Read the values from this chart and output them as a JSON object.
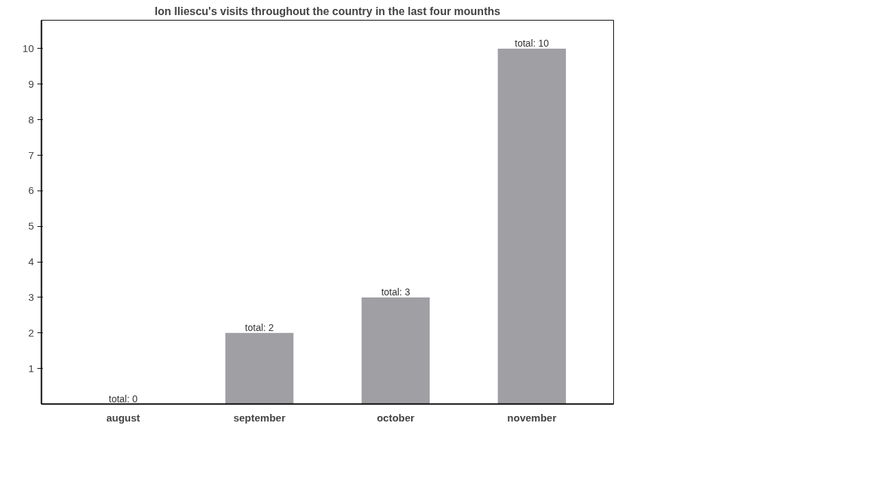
{
  "chart_data": {
    "type": "bar",
    "title": "Ion Iliescu's visits throughout the country in the last four mounths",
    "categories": [
      "august",
      "september",
      "october",
      "november"
    ],
    "values": [
      0,
      2,
      3,
      10
    ],
    "value_labels": [
      "total: 0",
      "total: 2",
      "total: 3",
      "total: 10"
    ],
    "color": "#a0a0a4",
    "ylim": [
      0,
      10.8
    ],
    "yticks": [
      1,
      2,
      3,
      4,
      5,
      6,
      7,
      8,
      9,
      10
    ],
    "grid": false
  }
}
